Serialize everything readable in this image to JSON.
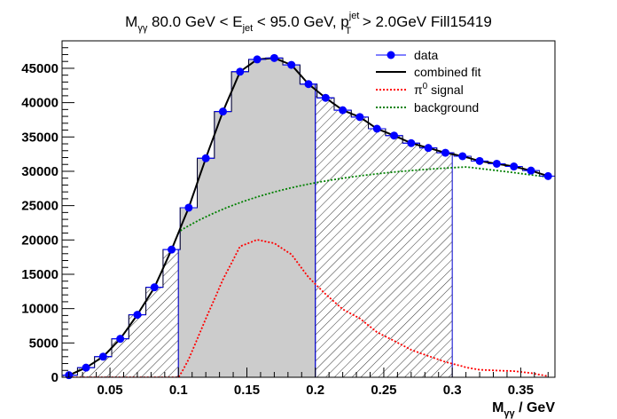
{
  "chart_data": {
    "type": "scatter",
    "title": {
      "base": "M",
      "base_sub": "γγ",
      "part1": " 80.0 GeV < E",
      "part1_sub": "jet",
      "part2": " < 95.0 GeV, p",
      "part2_sup": "jet",
      "part2_sub": "T",
      "part3": " > 2.0GeV Fill15419"
    },
    "xlabel": {
      "base": "M",
      "sub": "γγ",
      "rest": " / GeV"
    },
    "ylabel": "",
    "xlim": [
      0.015,
      0.375
    ],
    "ylim": [
      0,
      49000
    ],
    "x_ticks": [
      0.05,
      0.1,
      0.15,
      0.2,
      0.25,
      0.3,
      0.35
    ],
    "x_tick_labels": [
      "0.05",
      "0.1",
      "0.15",
      "0.2",
      "0.25",
      "0.3",
      "0.35"
    ],
    "y_ticks": [
      0,
      5000,
      10000,
      15000,
      20000,
      25000,
      30000,
      35000,
      40000,
      45000
    ],
    "y_tick_labels": [
      "0",
      "5000",
      "10000",
      "15000",
      "20000",
      "25000",
      "30000",
      "35000",
      "40000",
      "45000"
    ],
    "bin_width": 0.0125,
    "x": [
      0.02,
      0.0325,
      0.045,
      0.0575,
      0.07,
      0.0825,
      0.095,
      0.1075,
      0.12,
      0.1325,
      0.145,
      0.1575,
      0.17,
      0.1825,
      0.195,
      0.2075,
      0.22,
      0.2325,
      0.245,
      0.2575,
      0.27,
      0.2825,
      0.295,
      0.3075,
      0.32,
      0.3325,
      0.345,
      0.3575,
      0.37
    ],
    "series": [
      {
        "name": "data",
        "color": "#0000ff",
        "marker": "circle",
        "values": [
          300,
          1400,
          3000,
          5600,
          9100,
          13100,
          18600,
          24700,
          31900,
          38700,
          44500,
          46300,
          46500,
          45500,
          42700,
          40700,
          38900,
          37900,
          36200,
          35200,
          34100,
          33400,
          32700,
          32200,
          31500,
          31100,
          30700,
          30100,
          29300
        ]
      },
      {
        "name": "combined fit",
        "color": "#000000",
        "style": "solid"
      },
      {
        "name": "π⁰ signal",
        "name_base": "π",
        "name_sup": "0",
        "name_rest": " signal",
        "color": "#ff0000",
        "style": "dotted"
      },
      {
        "name": "background",
        "color": "#008000",
        "style": "dotted"
      }
    ],
    "fill_regions": [
      {
        "name": "left-hatched-region",
        "x_range": [
          0.015,
          0.1
        ],
        "style": "hatched"
      },
      {
        "name": "signal-region",
        "x_range": [
          0.1,
          0.2
        ],
        "style": "filled",
        "color": "#cccccc"
      },
      {
        "name": "right-hatched-region",
        "x_range": [
          0.2,
          0.3
        ],
        "style": "hatched"
      }
    ],
    "legend_position": "top-right",
    "grid": false
  }
}
